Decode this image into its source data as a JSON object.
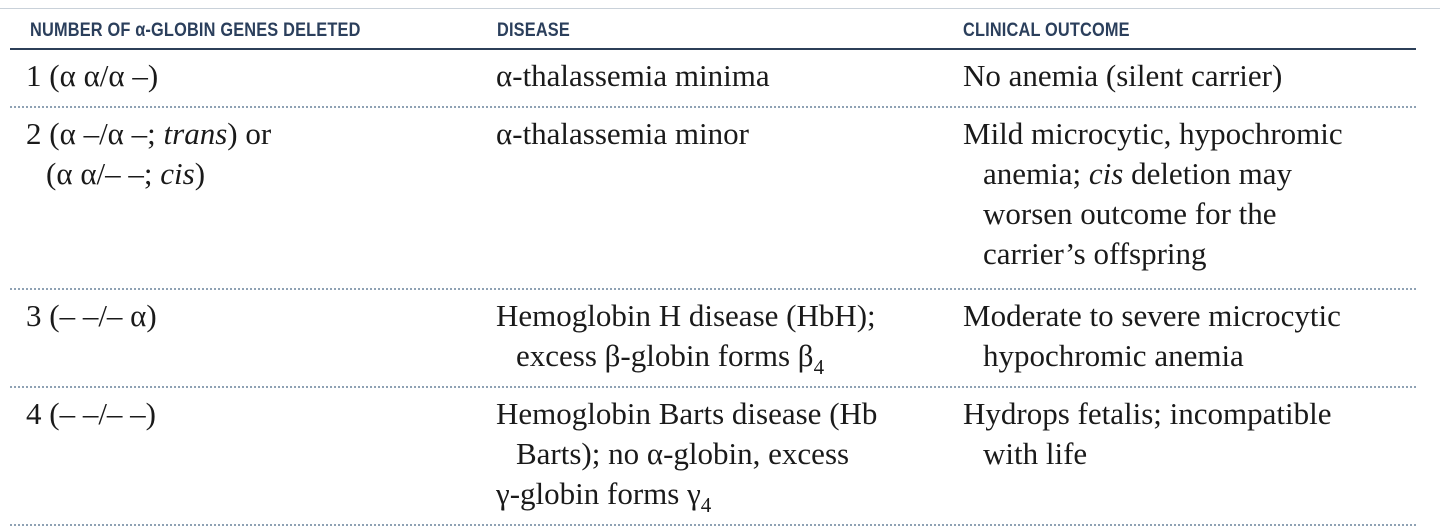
{
  "table": {
    "headers": {
      "col1": "NUMBER OF α-GLOBIN GENES DELETED",
      "col2": "DISEASE",
      "col3": "CLINICAL OUTCOME"
    },
    "rows": [
      {
        "genes": {
          "line1": "1 (α α/α –)"
        },
        "disease": {
          "line1": "α-thalassemia minima"
        },
        "outcome": {
          "line1": "No anemia (silent carrier)"
        }
      },
      {
        "genes": {
          "line1_a": "2 (α –/α –; ",
          "line1_ital": "trans",
          "line1_b": ") or",
          "line2_a": "(α α/– –; ",
          "line2_ital": "cis",
          "line2_b": ")"
        },
        "disease": {
          "line1": "α-thalassemia minor"
        },
        "outcome": {
          "line1": "Mild microcytic, hypochromic",
          "line2_a": "anemia; ",
          "line2_ital": "cis",
          "line2_b": " deletion may",
          "line3": "worsen outcome for the",
          "line4": "carrier’s offspring"
        }
      },
      {
        "genes": {
          "line1": "3 (– –/– α)"
        },
        "disease": {
          "line1": "Hemoglobin H disease (HbH);",
          "line2": "excess β-globin forms β",
          "line2_sub": "4"
        },
        "outcome": {
          "line1": "Moderate to severe microcytic",
          "line2": "hypochromic anemia"
        }
      },
      {
        "genes": {
          "line1": "4 (– –/– –)"
        },
        "disease": {
          "line1": "Hemoglobin Barts disease (Hb",
          "line2": "Barts); no α-globin, excess",
          "line3": "γ-globin forms γ",
          "line3_sub": "4"
        },
        "outcome": {
          "line1": "Hydrops fetalis; incompatible",
          "line2": "with life"
        }
      }
    ]
  }
}
